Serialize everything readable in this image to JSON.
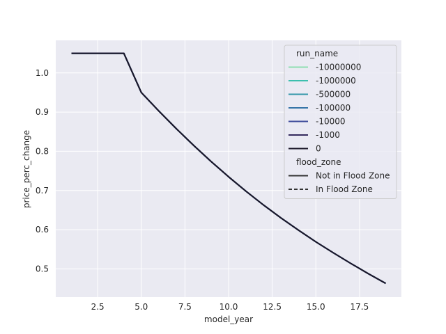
{
  "chart_data": {
    "type": "line",
    "xlabel": "model_year",
    "ylabel": "price_perc_change",
    "xlim": [
      0.1,
      19.9
    ],
    "ylim": [
      0.428,
      1.083
    ],
    "xticks": [
      2.5,
      5.0,
      7.5,
      10.0,
      12.5,
      15.0,
      17.5
    ],
    "xtick_labels": [
      "2.5",
      "5.0",
      "7.5",
      "10.0",
      "12.5",
      "15.0",
      "17.5"
    ],
    "yticks": [
      0.5,
      0.6,
      0.7,
      0.8,
      0.9,
      1.0
    ],
    "ytick_labels": [
      "0.5",
      "0.6",
      "0.7",
      "0.8",
      "0.9",
      "1.0"
    ],
    "grid": true,
    "background_color": "#eaeaf2",
    "x": [
      1,
      2,
      3,
      4,
      5,
      6,
      7,
      8,
      9,
      10,
      11,
      12,
      13,
      14,
      15,
      16,
      17,
      18,
      19
    ],
    "series": [
      {
        "name": "-10000000",
        "color": "#8fdeb1",
        "linestyle": "solid",
        "values": [
          1.05,
          1.05,
          1.05,
          1.05,
          0.95,
          0.903,
          0.858,
          0.815,
          0.774,
          0.735,
          0.698,
          0.663,
          0.63,
          0.599,
          0.569,
          0.541,
          0.514,
          0.488,
          0.463
        ]
      },
      {
        "name": "-1000000",
        "color": "#3cbfae",
        "linestyle": "solid",
        "values": [
          1.05,
          1.05,
          1.05,
          1.05,
          0.95,
          0.903,
          0.858,
          0.815,
          0.774,
          0.735,
          0.698,
          0.663,
          0.63,
          0.599,
          0.569,
          0.541,
          0.514,
          0.488,
          0.463
        ]
      },
      {
        "name": "-500000",
        "color": "#3397a9",
        "linestyle": "solid",
        "values": [
          1.05,
          1.05,
          1.05,
          1.05,
          0.95,
          0.903,
          0.858,
          0.815,
          0.774,
          0.735,
          0.698,
          0.663,
          0.63,
          0.599,
          0.569,
          0.541,
          0.514,
          0.488,
          0.463
        ]
      },
      {
        "name": "-100000",
        "color": "#3574a7",
        "linestyle": "solid",
        "values": [
          1.05,
          1.05,
          1.05,
          1.05,
          0.95,
          0.903,
          0.858,
          0.815,
          0.774,
          0.735,
          0.698,
          0.663,
          0.63,
          0.599,
          0.569,
          0.541,
          0.514,
          0.488,
          0.463
        ]
      },
      {
        "name": "-10000",
        "color": "#3d4b9a",
        "linestyle": "solid",
        "values": [
          1.05,
          1.05,
          1.05,
          1.05,
          0.95,
          0.903,
          0.858,
          0.815,
          0.774,
          0.735,
          0.698,
          0.663,
          0.63,
          0.599,
          0.569,
          0.541,
          0.514,
          0.488,
          0.463
        ]
      },
      {
        "name": "-1000",
        "color": "#342a5e",
        "linestyle": "solid",
        "values": [
          1.05,
          1.05,
          1.05,
          1.05,
          0.95,
          0.903,
          0.858,
          0.815,
          0.774,
          0.735,
          0.698,
          0.663,
          0.63,
          0.599,
          0.569,
          0.541,
          0.514,
          0.488,
          0.463
        ]
      },
      {
        "name": "0",
        "color": "#1b1728",
        "linestyle": "solid",
        "values": [
          1.05,
          1.05,
          1.05,
          1.05,
          0.95,
          0.903,
          0.858,
          0.815,
          0.774,
          0.735,
          0.698,
          0.663,
          0.63,
          0.599,
          0.569,
          0.541,
          0.514,
          0.488,
          0.463
        ]
      }
    ],
    "legend": {
      "placement": "upper right",
      "groups": [
        {
          "title": "run_name",
          "entries": [
            {
              "label": "-10000000",
              "color": "#8fdeb1",
              "linestyle": "solid"
            },
            {
              "label": "-1000000",
              "color": "#3cbfae",
              "linestyle": "solid"
            },
            {
              "label": "-500000",
              "color": "#3397a9",
              "linestyle": "solid"
            },
            {
              "label": "-100000",
              "color": "#3574a7",
              "linestyle": "solid"
            },
            {
              "label": "-10000",
              "color": "#3d4b9a",
              "linestyle": "solid"
            },
            {
              "label": "-1000",
              "color": "#342a5e",
              "linestyle": "solid"
            },
            {
              "label": "0",
              "color": "#1b1728",
              "linestyle": "solid"
            }
          ]
        },
        {
          "title": "flood_zone",
          "entries": [
            {
              "label": "Not in Flood Zone",
              "color": "#333333",
              "linestyle": "solid"
            },
            {
              "label": "In Flood Zone",
              "color": "#333333",
              "linestyle": "dashed"
            }
          ]
        }
      ]
    }
  }
}
